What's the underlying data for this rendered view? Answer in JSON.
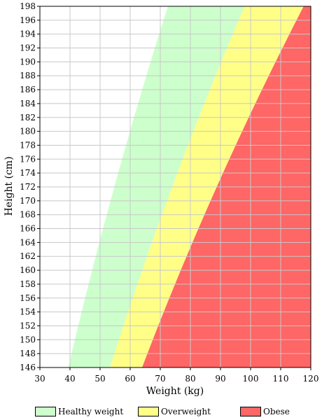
{
  "chart_data": {
    "type": "area",
    "xlabel": "Weight (kg)",
    "ylabel": "Height (cm)",
    "xlim": [
      30,
      120
    ],
    "ylim": [
      146,
      198
    ],
    "xticks": [
      30,
      40,
      50,
      60,
      70,
      80,
      90,
      100,
      110,
      120
    ],
    "yticks": [
      146,
      148,
      150,
      152,
      154,
      156,
      158,
      160,
      162,
      164,
      166,
      168,
      170,
      172,
      174,
      176,
      178,
      180,
      182,
      184,
      186,
      188,
      190,
      192,
      194,
      196,
      198
    ],
    "grid": true,
    "legend_position": "bottom",
    "series": [
      {
        "name": "Healthy weight",
        "color": "#ccffcc",
        "bmi_lower": 18.5,
        "bmi_upper": 25
      },
      {
        "name": "Overweight",
        "color": "#ffff88",
        "bmi_lower": 25,
        "bmi_upper": 30
      },
      {
        "name": "Obese",
        "color": "#ff6666",
        "bmi_lower": 30,
        "bmi_upper": null
      }
    ]
  }
}
